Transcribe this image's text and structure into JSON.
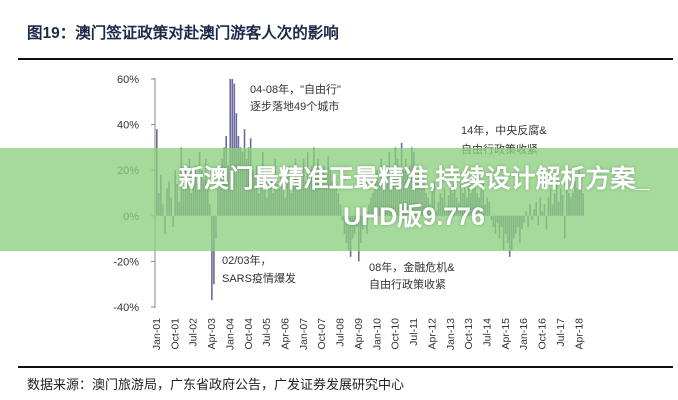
{
  "chart_data": {
    "type": "bar",
    "title": "图19：澳门签证政策对赴澳门游客人次的影响",
    "xlabel": "",
    "ylabel": "",
    "ylim": [
      -40,
      60
    ],
    "yticks": [
      "60%",
      "40%",
      "20%",
      "0%",
      "-20%",
      "-40%"
    ],
    "ytick_values": [
      60,
      40,
      20,
      0,
      -20,
      -40
    ],
    "x_start": "Jan-01",
    "x_frequency": "monthly",
    "xticks": [
      "Jan-01",
      "Oct-01",
      "Jul-02",
      "Apr-03",
      "Jan-04",
      "Oct-04",
      "Jul-05",
      "Apr-06",
      "Jan-07",
      "Oct-07",
      "Jul-08",
      "Apr-09",
      "Jan-10",
      "Oct-10",
      "Jul-11",
      "Apr-12",
      "Jan-13",
      "Oct-13",
      "Jul-14",
      "Apr-15",
      "Jan-16",
      "Oct-16",
      "Jul-17",
      "Apr-18"
    ],
    "grid": false,
    "bar_color": "#6a6a9e",
    "values": [
      38,
      10,
      18,
      5,
      -8,
      12,
      15,
      8,
      -5,
      20,
      14,
      6,
      30,
      12,
      20,
      15,
      25,
      10,
      18,
      22,
      14,
      28,
      20,
      16,
      25,
      15,
      5,
      -37,
      -30,
      -10,
      12,
      20,
      25,
      30,
      35,
      22,
      60,
      60,
      58,
      45,
      35,
      30,
      28,
      38,
      25,
      30,
      34,
      20,
      18,
      22,
      10,
      15,
      28,
      12,
      8,
      20,
      16,
      10,
      25,
      14,
      12,
      20,
      15,
      8,
      18,
      22,
      10,
      14,
      25,
      20,
      12,
      18,
      25,
      15,
      28,
      20,
      22,
      30,
      18,
      25,
      20,
      15,
      22,
      18,
      26,
      20,
      15,
      18,
      12,
      10,
      5,
      -2,
      -8,
      -12,
      -15,
      -18,
      -10,
      -8,
      -5,
      -20,
      -12,
      -6,
      -3,
      -8,
      5,
      8,
      10,
      15,
      20,
      15,
      25,
      12,
      18,
      22,
      28,
      15,
      20,
      30,
      25,
      18,
      32,
      20,
      25,
      18,
      22,
      30,
      28,
      15,
      20,
      18,
      12,
      14,
      10,
      8,
      5,
      12,
      15,
      2,
      6,
      10,
      8,
      12,
      4,
      9,
      12,
      10,
      15,
      8,
      6,
      14,
      10,
      12,
      8,
      15,
      10,
      12,
      15,
      10,
      8,
      12,
      14,
      5,
      8,
      6,
      -2,
      -5,
      -8,
      -3,
      -10,
      -5,
      -15,
      -8,
      -12,
      -18,
      -15,
      -10,
      -8,
      -5,
      -12,
      -6,
      -3,
      2,
      -5,
      5,
      -2,
      3,
      6,
      -4,
      8,
      2,
      5,
      -6,
      8,
      12,
      5,
      10,
      15,
      6,
      12,
      9,
      -10,
      14,
      10,
      8,
      10,
      15,
      12,
      20,
      18,
      10
    ],
    "annotations": [
      {
        "line1": "04-08年，\"自由行\"",
        "line2": "逐步落地49个城市"
      },
      {
        "line1": "14年，中央反腐&",
        "line2": "自由行政策收紧"
      },
      {
        "line1": "02/03年，",
        "line2": "SARS疫情爆发"
      },
      {
        "line1": "08年，金融危机&",
        "line2": "自由行政策收紧"
      }
    ]
  },
  "source": "数据来源：澳门旅游局，广东省政府公告，广发证券发展研究中心",
  "banner": {
    "line1": "新澳门最精准正最精准,持续设计解析方案_",
    "line2": "UHD版9.776",
    "color": "#8cd07d"
  }
}
